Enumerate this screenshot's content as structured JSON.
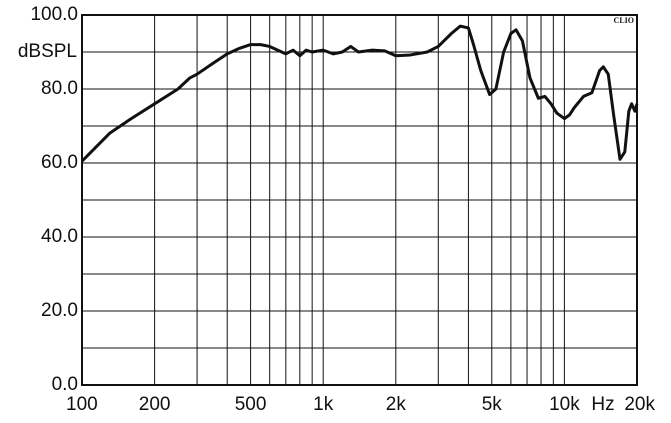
{
  "chart_data": {
    "type": "line",
    "y_label": "dBSPL",
    "x_unit": "Hz",
    "brand": "CLIO",
    "log_x": true,
    "grid": true,
    "xlim": [
      100,
      20000
    ],
    "ylim": [
      0,
      100
    ],
    "xticks": [
      100,
      200,
      500,
      {
        "value": 1000,
        "label": "1k"
      },
      {
        "value": 2000,
        "label": "2k"
      },
      {
        "value": 5000,
        "label": "5k"
      },
      {
        "value": 10000,
        "label": "10k"
      },
      {
        "value": 20000,
        "label": "20k"
      }
    ],
    "xminor": [
      300,
      400,
      600,
      700,
      800,
      900,
      3000,
      4000,
      6000,
      7000,
      8000,
      9000
    ],
    "yticks": [
      {
        "value": 0,
        "label": "0.0"
      },
      {
        "value": 20,
        "label": "20.0"
      },
      {
        "value": 40,
        "label": "40.0"
      },
      {
        "value": 60,
        "label": "60.0"
      },
      {
        "value": 80,
        "label": "80.0"
      },
      {
        "value": 100,
        "label": "100.0"
      }
    ],
    "yminor": [
      10,
      30,
      50,
      70,
      90
    ],
    "x": [
      100,
      130,
      160,
      200,
      250,
      280,
      300,
      350,
      400,
      450,
      500,
      550,
      600,
      700,
      750,
      800,
      850,
      900,
      1000,
      1100,
      1200,
      1300,
      1400,
      1600,
      1800,
      2000,
      2300,
      2700,
      3000,
      3400,
      3700,
      4000,
      4200,
      4500,
      4900,
      5200,
      5600,
      6000,
      6300,
      6700,
      7200,
      7800,
      8300,
      8800,
      9300,
      10000,
      10500,
      11000,
      12000,
      13000,
      14000,
      14500,
      15200,
      16000,
      17000,
      17800,
      18500,
      19000,
      19600,
      20000
    ],
    "series": [
      {
        "color": "#111111",
        "values": [
          60.5,
          68,
          72,
          76,
          80,
          83,
          84,
          87,
          89.5,
          91,
          92,
          92,
          91.5,
          89.5,
          90.5,
          89,
          90.5,
          90,
          90.5,
          89.5,
          90,
          91.5,
          90,
          90.5,
          90.3,
          89,
          89.2,
          90,
          91.5,
          95,
          97,
          96.5,
          92,
          85,
          78.5,
          80,
          90,
          95,
          96,
          93,
          83,
          77.5,
          78,
          76,
          73.5,
          72,
          73,
          75,
          78,
          79,
          85,
          86,
          84,
          73,
          61,
          63,
          74,
          76,
          74,
          76
        ]
      }
    ]
  }
}
